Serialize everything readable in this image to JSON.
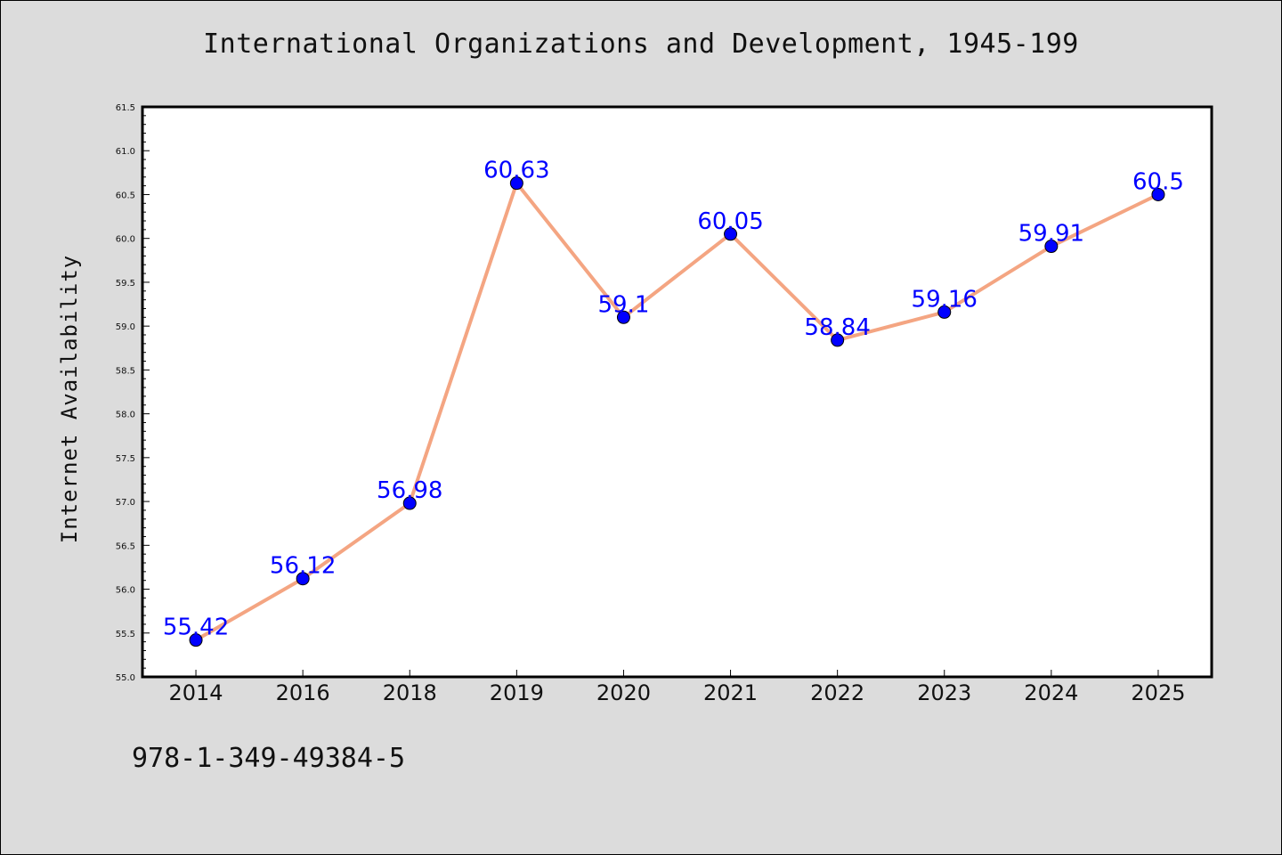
{
  "chart_data": {
    "type": "line",
    "title": "International Organizations and Development, 1945-199",
    "xlabel": "",
    "ylabel": "Internet Availability",
    "categories": [
      "2014",
      "2016",
      "2018",
      "2019",
      "2020",
      "2021",
      "2022",
      "2023",
      "2024",
      "2025"
    ],
    "series": [
      {
        "values": [
          55.42,
          56.12,
          56.98,
          60.63,
          59.1,
          60.05,
          58.84,
          59.16,
          59.91,
          60.5
        ],
        "data_labels": [
          "55.42",
          "56.12",
          "56.98",
          "60.63",
          "59.1",
          "60.05",
          "58.84",
          "59.16",
          "59.91",
          "60.5"
        ]
      }
    ],
    "ylim": [
      55.0,
      61.5
    ],
    "yticks": [
      "55.0",
      "55.5",
      "56.0",
      "56.5",
      "57.0",
      "57.5",
      "58.0",
      "58.5",
      "59.0",
      "59.5",
      "60.0",
      "60.5",
      "61.0",
      "61.5"
    ],
    "grid": false,
    "legend": "none",
    "colors": {
      "line": "#f4a582",
      "marker": "#0000ff",
      "label": "#0000ff",
      "plot_background": "#ffffff",
      "figure_background": "#dcdcdc"
    }
  },
  "footer": {
    "isbn": "978-1-349-49384-5"
  }
}
